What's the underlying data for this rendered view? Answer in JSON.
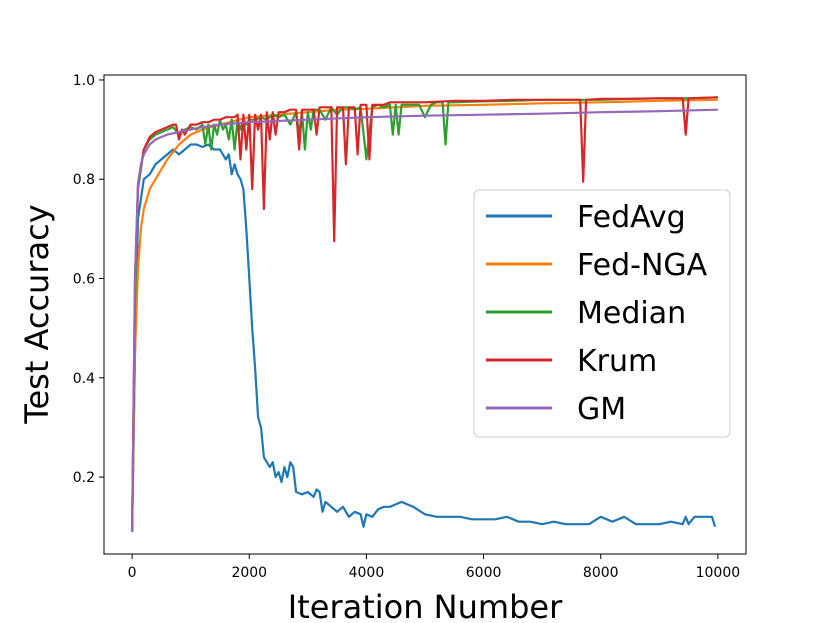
{
  "chart_data": {
    "type": "line",
    "title": "",
    "xlabel": "Iteration Number",
    "ylabel": "Test Accuracy",
    "xlim": [
      -480,
      10480
    ],
    "ylim": [
      0.045,
      1.01
    ],
    "xticks": [
      0,
      2000,
      4000,
      6000,
      8000,
      10000
    ],
    "xtick_labels": [
      "0",
      "2000",
      "4000",
      "6000",
      "8000",
      "10000"
    ],
    "yticks": [
      0.2,
      0.4,
      0.6,
      0.8,
      1.0
    ],
    "ytick_labels": [
      "0.2",
      "0.4",
      "0.6",
      "0.8",
      "1.0"
    ],
    "grid": false,
    "legend_position": "center-right",
    "series": [
      {
        "name": "FedAvg",
        "color": "#1f77b4",
        "x": [
          0,
          50,
          100,
          200,
          300,
          400,
          500,
          600,
          700,
          800,
          900,
          1000,
          1100,
          1200,
          1300,
          1400,
          1500,
          1600,
          1650,
          1700,
          1750,
          1800,
          1850,
          1900,
          1950,
          2000,
          2050,
          2100,
          2150,
          2200,
          2250,
          2300,
          2350,
          2400,
          2450,
          2500,
          2550,
          2600,
          2650,
          2700,
          2750,
          2800,
          2900,
          3000,
          3100,
          3150,
          3200,
          3250,
          3300,
          3400,
          3500,
          3600,
          3700,
          3800,
          3900,
          3950,
          4000,
          4100,
          4200,
          4300,
          4400,
          4500,
          4600,
          4700,
          4800,
          5000,
          5200,
          5400,
          5600,
          5800,
          6000,
          6200,
          6400,
          6600,
          6800,
          7000,
          7200,
          7400,
          7600,
          7800,
          8000,
          8200,
          8400,
          8600,
          8800,
          9000,
          9200,
          9400,
          9450,
          9500,
          9600,
          9700,
          9800,
          9900,
          9950
        ],
        "values": [
          0.09,
          0.45,
          0.72,
          0.8,
          0.81,
          0.83,
          0.84,
          0.85,
          0.86,
          0.85,
          0.86,
          0.87,
          0.87,
          0.865,
          0.87,
          0.86,
          0.86,
          0.84,
          0.85,
          0.81,
          0.83,
          0.81,
          0.8,
          0.78,
          0.7,
          0.6,
          0.5,
          0.42,
          0.32,
          0.3,
          0.24,
          0.23,
          0.22,
          0.23,
          0.2,
          0.21,
          0.19,
          0.22,
          0.2,
          0.23,
          0.22,
          0.17,
          0.165,
          0.17,
          0.16,
          0.175,
          0.17,
          0.13,
          0.15,
          0.14,
          0.13,
          0.14,
          0.12,
          0.13,
          0.125,
          0.1,
          0.125,
          0.12,
          0.135,
          0.14,
          0.14,
          0.145,
          0.15,
          0.145,
          0.14,
          0.125,
          0.12,
          0.12,
          0.12,
          0.115,
          0.115,
          0.115,
          0.12,
          0.11,
          0.11,
          0.105,
          0.11,
          0.105,
          0.105,
          0.105,
          0.12,
          0.11,
          0.12,
          0.105,
          0.105,
          0.105,
          0.11,
          0.105,
          0.12,
          0.105,
          0.12,
          0.12,
          0.12,
          0.12,
          0.1
        ]
      },
      {
        "name": "Fed-NGA",
        "color": "#ff7f0e",
        "x": [
          0,
          50,
          100,
          150,
          200,
          300,
          400,
          500,
          600,
          800,
          1000,
          1200,
          1500,
          2000,
          2500,
          3000,
          3500,
          4000,
          4500,
          5000,
          6000,
          7000,
          8000,
          9000,
          10000
        ],
        "values": [
          0.09,
          0.45,
          0.62,
          0.7,
          0.74,
          0.78,
          0.8,
          0.82,
          0.84,
          0.87,
          0.89,
          0.9,
          0.91,
          0.925,
          0.93,
          0.935,
          0.94,
          0.942,
          0.945,
          0.948,
          0.95,
          0.953,
          0.955,
          0.958,
          0.96
        ]
      },
      {
        "name": "Median",
        "color": "#2ca02c",
        "x": [
          0,
          50,
          100,
          200,
          300,
          400,
          500,
          600,
          700,
          800,
          900,
          1000,
          1100,
          1200,
          1250,
          1300,
          1350,
          1400,
          1450,
          1500,
          1550,
          1600,
          1650,
          1700,
          1750,
          1800,
          1850,
          1900,
          1950,
          2000,
          2100,
          2200,
          2300,
          2400,
          2500,
          2600,
          2700,
          2800,
          2850,
          2900,
          2950,
          3000,
          3050,
          3100,
          3200,
          3300,
          3400,
          3500,
          3600,
          3700,
          3800,
          3900,
          4000,
          4100,
          4200,
          4300,
          4400,
          4450,
          4500,
          4550,
          4600,
          4800,
          4900,
          5000,
          5100,
          5200,
          5300,
          5350,
          5400,
          5500,
          6000,
          6500,
          7000,
          7500,
          8000,
          8500,
          9000,
          9500,
          10000
        ],
        "values": [
          0.09,
          0.55,
          0.78,
          0.86,
          0.88,
          0.89,
          0.895,
          0.9,
          0.905,
          0.89,
          0.9,
          0.905,
          0.9,
          0.91,
          0.87,
          0.91,
          0.86,
          0.91,
          0.89,
          0.92,
          0.9,
          0.91,
          0.88,
          0.92,
          0.86,
          0.92,
          0.9,
          0.92,
          0.91,
          0.92,
          0.92,
          0.925,
          0.92,
          0.93,
          0.925,
          0.93,
          0.91,
          0.935,
          0.89,
          0.935,
          0.86,
          0.935,
          0.9,
          0.94,
          0.94,
          0.92,
          0.945,
          0.93,
          0.945,
          0.945,
          0.94,
          0.945,
          0.84,
          0.945,
          0.95,
          0.945,
          0.95,
          0.89,
          0.95,
          0.89,
          0.95,
          0.95,
          0.95,
          0.925,
          0.95,
          0.955,
          0.955,
          0.87,
          0.955,
          0.955,
          0.957,
          0.958,
          0.96,
          0.96,
          0.96,
          0.962,
          0.963,
          0.963,
          0.965
        ]
      },
      {
        "name": "Krum",
        "color": "#d62728",
        "x": [
          0,
          50,
          100,
          200,
          300,
          400,
          500,
          600,
          700,
          750,
          800,
          850,
          900,
          1000,
          1100,
          1200,
          1300,
          1400,
          1500,
          1600,
          1700,
          1750,
          1800,
          1850,
          1900,
          1950,
          2000,
          2050,
          2100,
          2150,
          2200,
          2250,
          2300,
          2350,
          2400,
          2450,
          2500,
          2600,
          2700,
          2800,
          2850,
          2900,
          3000,
          3100,
          3150,
          3200,
          3300,
          3400,
          3450,
          3500,
          3600,
          3650,
          3700,
          3800,
          3850,
          3900,
          4000,
          4050,
          4100,
          4200,
          4300,
          4400,
          4500,
          4600,
          4800,
          5000,
          5500,
          6000,
          6500,
          7000,
          7500,
          7650,
          7700,
          7750,
          8000,
          8500,
          9000,
          9400,
          9450,
          9500,
          10000
        ],
        "values": [
          0.09,
          0.6,
          0.79,
          0.86,
          0.885,
          0.895,
          0.9,
          0.905,
          0.91,
          0.91,
          0.88,
          0.9,
          0.89,
          0.91,
          0.91,
          0.915,
          0.915,
          0.92,
          0.92,
          0.925,
          0.925,
          0.925,
          0.93,
          0.84,
          0.93,
          0.86,
          0.93,
          0.78,
          0.93,
          0.9,
          0.93,
          0.74,
          0.935,
          0.88,
          0.935,
          0.89,
          0.935,
          0.935,
          0.94,
          0.94,
          0.86,
          0.94,
          0.94,
          0.94,
          0.89,
          0.945,
          0.945,
          0.945,
          0.675,
          0.945,
          0.945,
          0.83,
          0.945,
          0.945,
          0.85,
          0.95,
          0.95,
          0.84,
          0.95,
          0.95,
          0.95,
          0.955,
          0.955,
          0.955,
          0.955,
          0.955,
          0.958,
          0.958,
          0.96,
          0.96,
          0.96,
          0.96,
          0.795,
          0.96,
          0.962,
          0.962,
          0.963,
          0.963,
          0.89,
          0.963,
          0.965
        ]
      },
      {
        "name": "GM",
        "color": "#9467bd",
        "x": [
          0,
          50,
          100,
          150,
          200,
          300,
          400,
          500,
          600,
          800,
          1000,
          1200,
          1500,
          2000,
          3000,
          4000,
          5000,
          6000,
          7000,
          8000,
          9000,
          10000
        ],
        "values": [
          0.09,
          0.6,
          0.79,
          0.83,
          0.85,
          0.87,
          0.88,
          0.885,
          0.89,
          0.895,
          0.9,
          0.905,
          0.91,
          0.915,
          0.92,
          0.925,
          0.928,
          0.93,
          0.932,
          0.935,
          0.937,
          0.94
        ]
      }
    ]
  }
}
